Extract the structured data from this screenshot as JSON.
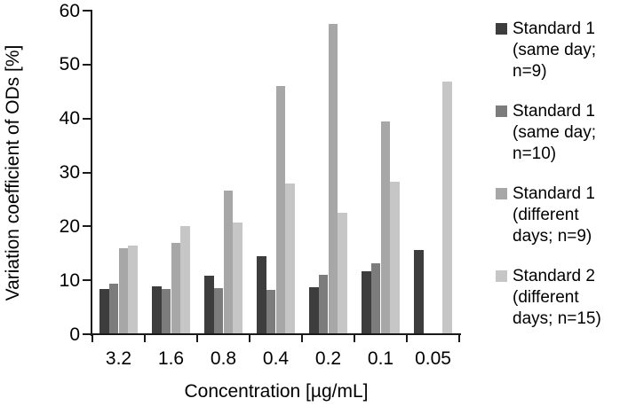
{
  "chart_data": {
    "type": "bar",
    "title": "",
    "xlabel": "Concentration [µg/mL]",
    "ylabel": "Variation coefficient of ODs [%]",
    "categories": [
      "3.2",
      "1.6",
      "0.8",
      "0.4",
      "0.2",
      "0.1",
      "0.05"
    ],
    "series": [
      {
        "name": "Standard 1 (same day; n=9)",
        "color": "#3d3d3d",
        "values": [
          8.4,
          8.9,
          10.8,
          14.5,
          8.7,
          11.7,
          15.6
        ]
      },
      {
        "name": "Standard 1 (same day; n=10)",
        "color": "#7c7c7c",
        "values": [
          9.3,
          8.4,
          8.5,
          8.3,
          11.0,
          13.2,
          0
        ]
      },
      {
        "name": "Standard 1 (different days; n=9)",
        "color": "#a7a7a7",
        "values": [
          16.0,
          16.9,
          26.7,
          46.1,
          57.6,
          39.4,
          0
        ]
      },
      {
        "name": "Standard 2 (different days; n=15)",
        "color": "#c6c6c6",
        "values": [
          16.5,
          20.1,
          20.7,
          28.0,
          22.6,
          28.3,
          46.9
        ]
      }
    ],
    "ylim": [
      0,
      60
    ],
    "ytick_step": 10,
    "yticks": [
      "0",
      "10",
      "20",
      "30",
      "40",
      "50",
      "60"
    ],
    "grid": false,
    "legend_position": "right",
    "legend_lines": [
      [
        "Standard 1",
        "(same day;",
        "n=9)"
      ],
      [
        "Standard 1",
        "(same day;",
        "n=10)"
      ],
      [
        "Standard 1",
        "(different",
        "days; n=9)"
      ],
      [
        "Standard 2",
        "(different",
        "days; n=15)"
      ]
    ],
    "axis_color": "#1a1a1a",
    "background_color": "#ffffff"
  }
}
